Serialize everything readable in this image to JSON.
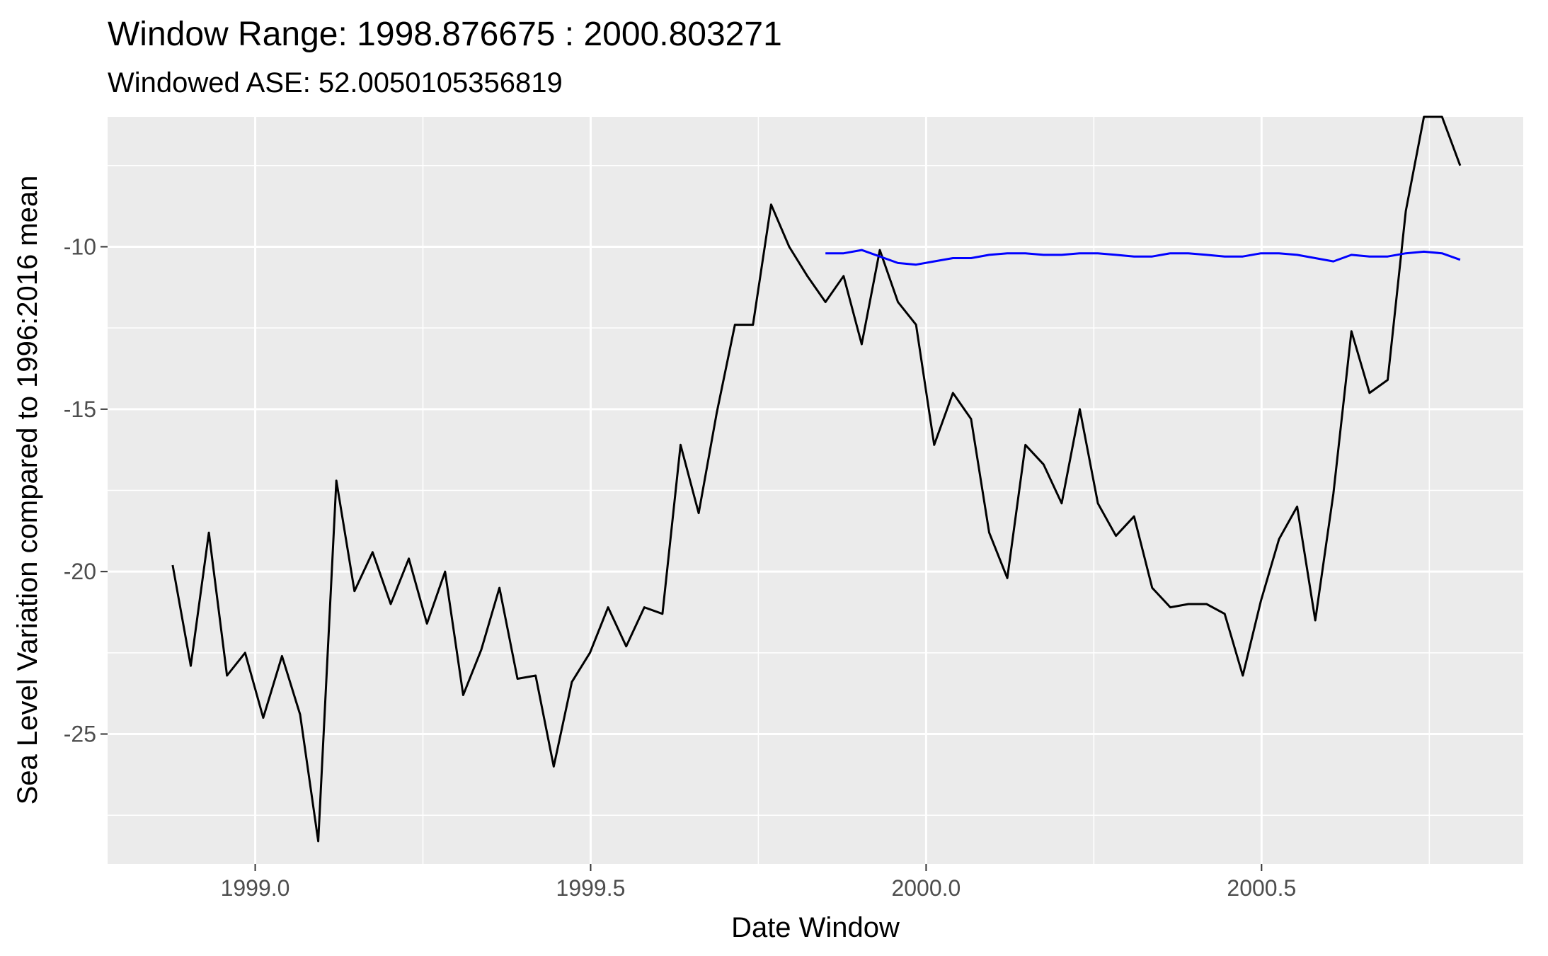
{
  "chart_data": {
    "type": "line",
    "title": "Window Range: 1998.876675 : 2000.803271",
    "subtitle": "Windowed ASE: 52.0050105356819",
    "xlabel": "Date Window",
    "ylabel": "Sea Level Variation compared to 1996:2016 mean",
    "xlim": [
      1998.78,
      2000.89
    ],
    "ylim": [
      -29.0,
      -6.0
    ],
    "x_ticks": [
      {
        "value": 1999.0,
        "label": "1999.0"
      },
      {
        "value": 1999.5,
        "label": "1999.5"
      },
      {
        "value": 2000.0,
        "label": "2000.0"
      },
      {
        "value": 2000.5,
        "label": "2000.5"
      }
    ],
    "y_ticks": [
      {
        "value": -25,
        "label": "-25"
      },
      {
        "value": -20,
        "label": "-20"
      },
      {
        "value": -15,
        "label": "-15"
      },
      {
        "value": -10,
        "label": "-10"
      }
    ],
    "grid": true,
    "legend": "none",
    "series": [
      {
        "color": "#000000",
        "x": [
          1998.877,
          1998.904,
          1998.931,
          1998.958,
          1998.985,
          1999.012,
          1999.04,
          1999.067,
          1999.094,
          1999.121,
          1999.148,
          1999.175,
          1999.202,
          1999.229,
          1999.256,
          1999.283,
          1999.31,
          1999.337,
          1999.364,
          1999.391,
          1999.418,
          1999.445,
          1999.472,
          1999.499,
          1999.526,
          1999.553,
          1999.58,
          1999.607,
          1999.634,
          1999.661,
          1999.688,
          1999.715,
          1999.742,
          1999.769,
          1999.796,
          1999.823,
          1999.85,
          1999.877,
          1999.904,
          1999.931,
          1999.958,
          1999.985,
          2000.012,
          2000.04,
          2000.067,
          2000.094,
          2000.121,
          2000.148,
          2000.175,
          2000.202,
          2000.229,
          2000.256,
          2000.283,
          2000.31,
          2000.337,
          2000.364,
          2000.391,
          2000.418,
          2000.445,
          2000.472,
          2000.499,
          2000.526,
          2000.553,
          2000.58,
          2000.607,
          2000.634,
          2000.661,
          2000.688,
          2000.715,
          2000.742,
          2000.769,
          2000.796
        ],
        "y": [
          -19.8,
          -22.9,
          -18.8,
          -23.2,
          -22.5,
          -24.5,
          -22.6,
          -24.4,
          -28.3,
          -17.2,
          -20.6,
          -19.4,
          -21.0,
          -19.6,
          -21.6,
          -20.0,
          -23.8,
          -22.4,
          -20.5,
          -23.3,
          -23.2,
          -26.0,
          -23.4,
          -22.5,
          -21.1,
          -22.3,
          -21.1,
          -21.3,
          -16.1,
          -18.2,
          -15.1,
          -12.4,
          -12.4,
          -8.7,
          -10.0,
          -10.9,
          -11.7,
          -10.9,
          -13.0,
          -10.1,
          -11.7,
          -12.4,
          -16.1,
          -14.5,
          -15.3,
          -18.8,
          -20.2,
          -16.1,
          -16.7,
          -17.9,
          -15.0,
          -17.9,
          -18.9,
          -18.3,
          -20.5,
          -21.1,
          -21.0,
          -21.0,
          -21.3,
          -23.2,
          -20.9,
          -19.0,
          -18.0,
          -21.5,
          -17.6,
          -12.6,
          -14.5,
          -14.1,
          -8.9,
          -6.0,
          -6.0,
          -7.5
        ]
      },
      {
        "color": "#0000ff",
        "x": [
          1999.85,
          1999.877,
          1999.904,
          1999.931,
          1999.958,
          1999.985,
          2000.012,
          2000.04,
          2000.067,
          2000.094,
          2000.121,
          2000.148,
          2000.175,
          2000.202,
          2000.229,
          2000.256,
          2000.283,
          2000.31,
          2000.337,
          2000.364,
          2000.391,
          2000.418,
          2000.445,
          2000.472,
          2000.499,
          2000.526,
          2000.553,
          2000.58,
          2000.607,
          2000.634,
          2000.661,
          2000.688,
          2000.715,
          2000.742,
          2000.769,
          2000.796
        ],
        "y": [
          -10.2,
          -10.2,
          -10.1,
          -10.3,
          -10.5,
          -10.55,
          -10.45,
          -10.35,
          -10.35,
          -10.25,
          -10.2,
          -10.2,
          -10.25,
          -10.25,
          -10.2,
          -10.2,
          -10.25,
          -10.3,
          -10.3,
          -10.2,
          -10.2,
          -10.25,
          -10.3,
          -10.3,
          -10.2,
          -10.2,
          -10.25,
          -10.35,
          -10.45,
          -10.25,
          -10.3,
          -10.3,
          -10.2,
          -10.15,
          -10.2,
          -10.4
        ]
      }
    ]
  }
}
